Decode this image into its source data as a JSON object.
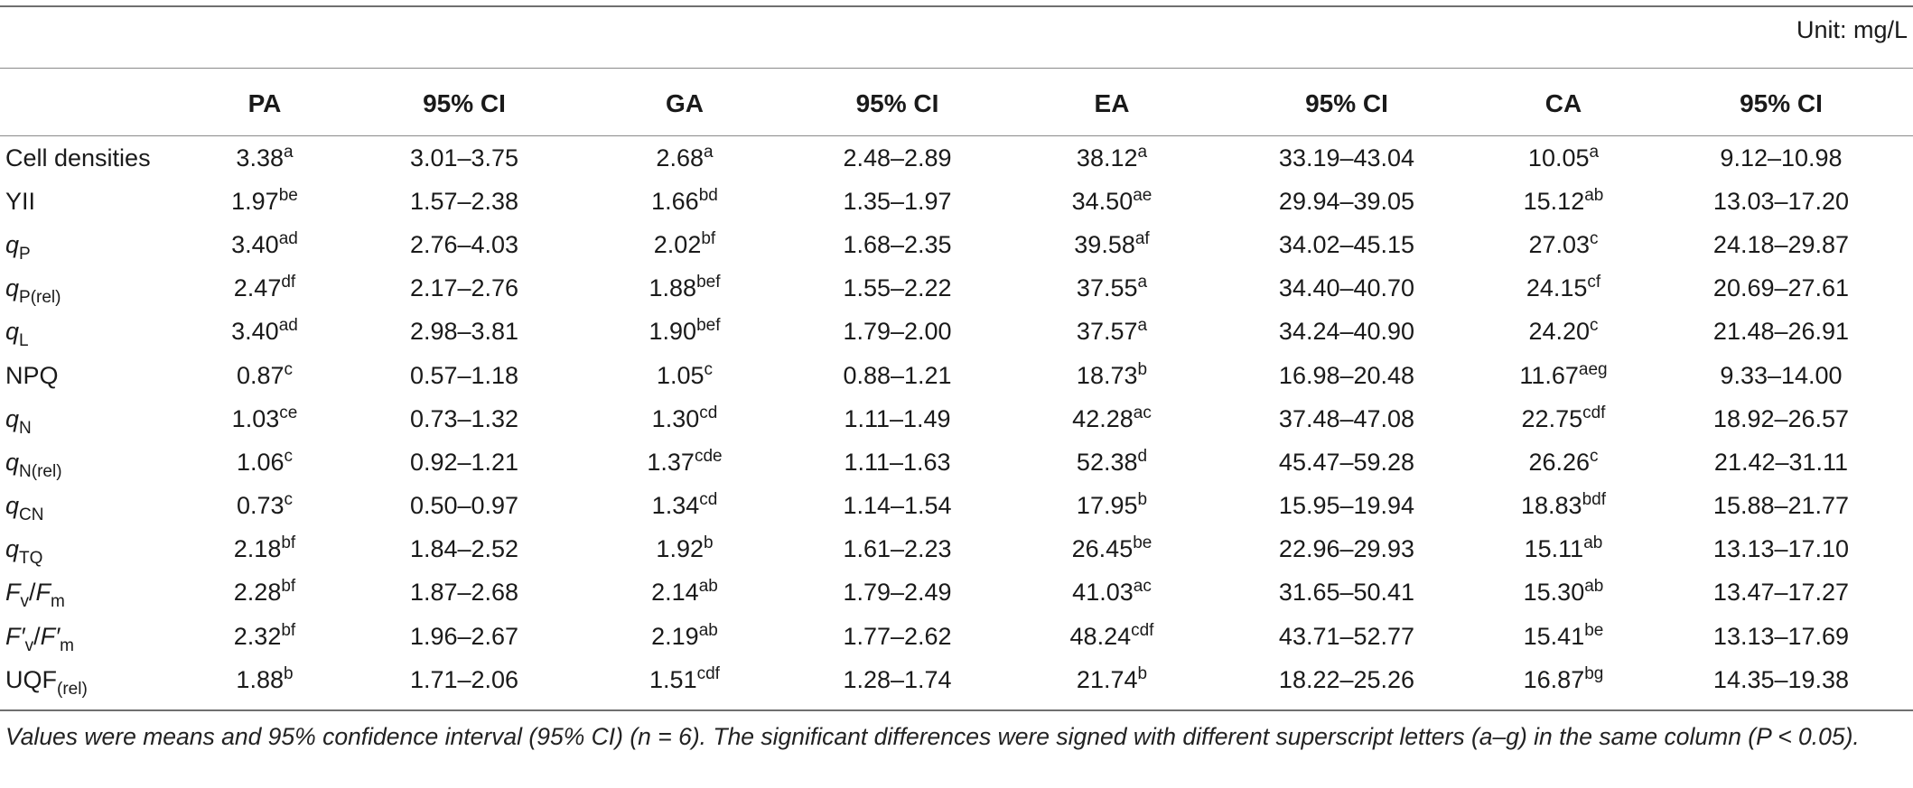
{
  "unit_label": "Unit: mg/L",
  "columns": [
    "",
    "PA",
    "95% CI",
    "GA",
    "95% CI",
    "EA",
    "95% CI",
    "CA",
    "95% CI"
  ],
  "rows": [
    {
      "label": {
        "base": "Cell densities",
        "sub": ""
      },
      "cells": [
        {
          "v": "3.38",
          "s": "a"
        },
        {
          "v": "3.01–3.75",
          "s": ""
        },
        {
          "v": "2.68",
          "s": "a"
        },
        {
          "v": "2.48–2.89",
          "s": ""
        },
        {
          "v": "38.12",
          "s": "a"
        },
        {
          "v": "33.19–43.04",
          "s": ""
        },
        {
          "v": "10.05",
          "s": "a"
        },
        {
          "v": "9.12–10.98",
          "s": ""
        }
      ]
    },
    {
      "label": {
        "base": "YII",
        "sub": ""
      },
      "cells": [
        {
          "v": "1.97",
          "s": "be"
        },
        {
          "v": "1.57–2.38",
          "s": ""
        },
        {
          "v": "1.66",
          "s": "bd"
        },
        {
          "v": "1.35–1.97",
          "s": ""
        },
        {
          "v": "34.50",
          "s": "ae"
        },
        {
          "v": "29.94–39.05",
          "s": ""
        },
        {
          "v": "15.12",
          "s": "ab"
        },
        {
          "v": "13.03–17.20",
          "s": ""
        }
      ]
    },
    {
      "label": {
        "base": "q",
        "sub": "P"
      },
      "cells": [
        {
          "v": "3.40",
          "s": "ad"
        },
        {
          "v": "2.76–4.03",
          "s": ""
        },
        {
          "v": "2.02",
          "s": "bf"
        },
        {
          "v": "1.68–2.35",
          "s": ""
        },
        {
          "v": "39.58",
          "s": "af"
        },
        {
          "v": "34.02–45.15",
          "s": ""
        },
        {
          "v": "27.03",
          "s": "c"
        },
        {
          "v": "24.18–29.87",
          "s": ""
        }
      ]
    },
    {
      "label": {
        "base": "q",
        "sub": "P(rel)"
      },
      "cells": [
        {
          "v": "2.47",
          "s": "df"
        },
        {
          "v": "2.17–2.76",
          "s": ""
        },
        {
          "v": "1.88",
          "s": "bef"
        },
        {
          "v": "1.55–2.22",
          "s": ""
        },
        {
          "v": "37.55",
          "s": "a"
        },
        {
          "v": "34.40–40.70",
          "s": ""
        },
        {
          "v": "24.15",
          "s": "cf"
        },
        {
          "v": "20.69–27.61",
          "s": ""
        }
      ]
    },
    {
      "label": {
        "base": "q",
        "sub": "L"
      },
      "cells": [
        {
          "v": "3.40",
          "s": "ad"
        },
        {
          "v": "2.98–3.81",
          "s": ""
        },
        {
          "v": "1.90",
          "s": "bef"
        },
        {
          "v": "1.79–2.00",
          "s": ""
        },
        {
          "v": "37.57",
          "s": "a"
        },
        {
          "v": "34.24–40.90",
          "s": ""
        },
        {
          "v": "24.20",
          "s": "c"
        },
        {
          "v": "21.48–26.91",
          "s": ""
        }
      ]
    },
    {
      "label": {
        "base": "NPQ",
        "sub": ""
      },
      "cells": [
        {
          "v": "0.87",
          "s": "c"
        },
        {
          "v": "0.57–1.18",
          "s": ""
        },
        {
          "v": "1.05",
          "s": "c"
        },
        {
          "v": "0.88–1.21",
          "s": ""
        },
        {
          "v": "18.73",
          "s": "b"
        },
        {
          "v": "16.98–20.48",
          "s": ""
        },
        {
          "v": "11.67",
          "s": "aeg"
        },
        {
          "v": "9.33–14.00",
          "s": ""
        }
      ]
    },
    {
      "label": {
        "base": "q",
        "sub": "N"
      },
      "cells": [
        {
          "v": "1.03",
          "s": "ce"
        },
        {
          "v": "0.73–1.32",
          "s": ""
        },
        {
          "v": "1.30",
          "s": "cd"
        },
        {
          "v": "1.11–1.49",
          "s": ""
        },
        {
          "v": "42.28",
          "s": "ac"
        },
        {
          "v": "37.48–47.08",
          "s": ""
        },
        {
          "v": "22.75",
          "s": "cdf"
        },
        {
          "v": "18.92–26.57",
          "s": ""
        }
      ]
    },
    {
      "label": {
        "base": "q",
        "sub": "N(rel)"
      },
      "cells": [
        {
          "v": "1.06",
          "s": "c"
        },
        {
          "v": "0.92–1.21",
          "s": ""
        },
        {
          "v": "1.37",
          "s": "cde"
        },
        {
          "v": "1.11–1.63",
          "s": ""
        },
        {
          "v": "52.38",
          "s": "d"
        },
        {
          "v": "45.47–59.28",
          "s": ""
        },
        {
          "v": "26.26",
          "s": "c"
        },
        {
          "v": "21.42–31.11",
          "s": ""
        }
      ]
    },
    {
      "label": {
        "base": "q",
        "sub": "CN"
      },
      "cells": [
        {
          "v": "0.73",
          "s": "c"
        },
        {
          "v": "0.50–0.97",
          "s": ""
        },
        {
          "v": "1.34",
          "s": "cd"
        },
        {
          "v": "1.14–1.54",
          "s": ""
        },
        {
          "v": "17.95",
          "s": "b"
        },
        {
          "v": "15.95–19.94",
          "s": ""
        },
        {
          "v": "18.83",
          "s": "bdf"
        },
        {
          "v": "15.88–21.77",
          "s": ""
        }
      ]
    },
    {
      "label": {
        "base": "q",
        "sub": "TQ"
      },
      "cells": [
        {
          "v": "2.18",
          "s": "bf"
        },
        {
          "v": "1.84–2.52",
          "s": ""
        },
        {
          "v": "1.92",
          "s": "b"
        },
        {
          "v": "1.61–2.23",
          "s": ""
        },
        {
          "v": "26.45",
          "s": "be"
        },
        {
          "v": "22.96–29.93",
          "s": ""
        },
        {
          "v": "15.11",
          "s": "ab"
        },
        {
          "v": "13.13–17.10",
          "s": ""
        }
      ]
    },
    {
      "label": {
        "base": "F",
        "sub": "v",
        "sep": "/",
        "base2": "F",
        "sub2": "m"
      },
      "cells": [
        {
          "v": "2.28",
          "s": "bf"
        },
        {
          "v": "1.87–2.68",
          "s": ""
        },
        {
          "v": "2.14",
          "s": "ab"
        },
        {
          "v": "1.79–2.49",
          "s": ""
        },
        {
          "v": "41.03",
          "s": "ac"
        },
        {
          "v": "31.65–50.41",
          "s": ""
        },
        {
          "v": "15.30",
          "s": "ab"
        },
        {
          "v": "13.47–17.27",
          "s": ""
        }
      ]
    },
    {
      "label": {
        "base": "F′",
        "sub": "v",
        "sep": "/",
        "base2": "F′",
        "sub2": "m"
      },
      "cells": [
        {
          "v": "2.32",
          "s": "bf"
        },
        {
          "v": "1.96–2.67",
          "s": ""
        },
        {
          "v": "2.19",
          "s": "ab"
        },
        {
          "v": "1.77–2.62",
          "s": ""
        },
        {
          "v": "48.24",
          "s": "cdf"
        },
        {
          "v": "43.71–52.77",
          "s": ""
        },
        {
          "v": "15.41",
          "s": "be"
        },
        {
          "v": "13.13–17.69",
          "s": ""
        }
      ]
    },
    {
      "label": {
        "base": "UQF",
        "sub": "(rel)"
      },
      "cells": [
        {
          "v": "1.88",
          "s": "b"
        },
        {
          "v": "1.71–2.06",
          "s": ""
        },
        {
          "v": "1.51",
          "s": "cdf"
        },
        {
          "v": "1.28–1.74",
          "s": ""
        },
        {
          "v": "21.74",
          "s": "b"
        },
        {
          "v": "18.22–25.26",
          "s": ""
        },
        {
          "v": "16.87",
          "s": "bg"
        },
        {
          "v": "14.35–19.38",
          "s": ""
        }
      ]
    }
  ],
  "footnote": "Values were means and 95% confidence interval (95% CI) (n = 6). The significant differences were signed with different superscript letters (a–g) in the same column (P < 0.05)."
}
